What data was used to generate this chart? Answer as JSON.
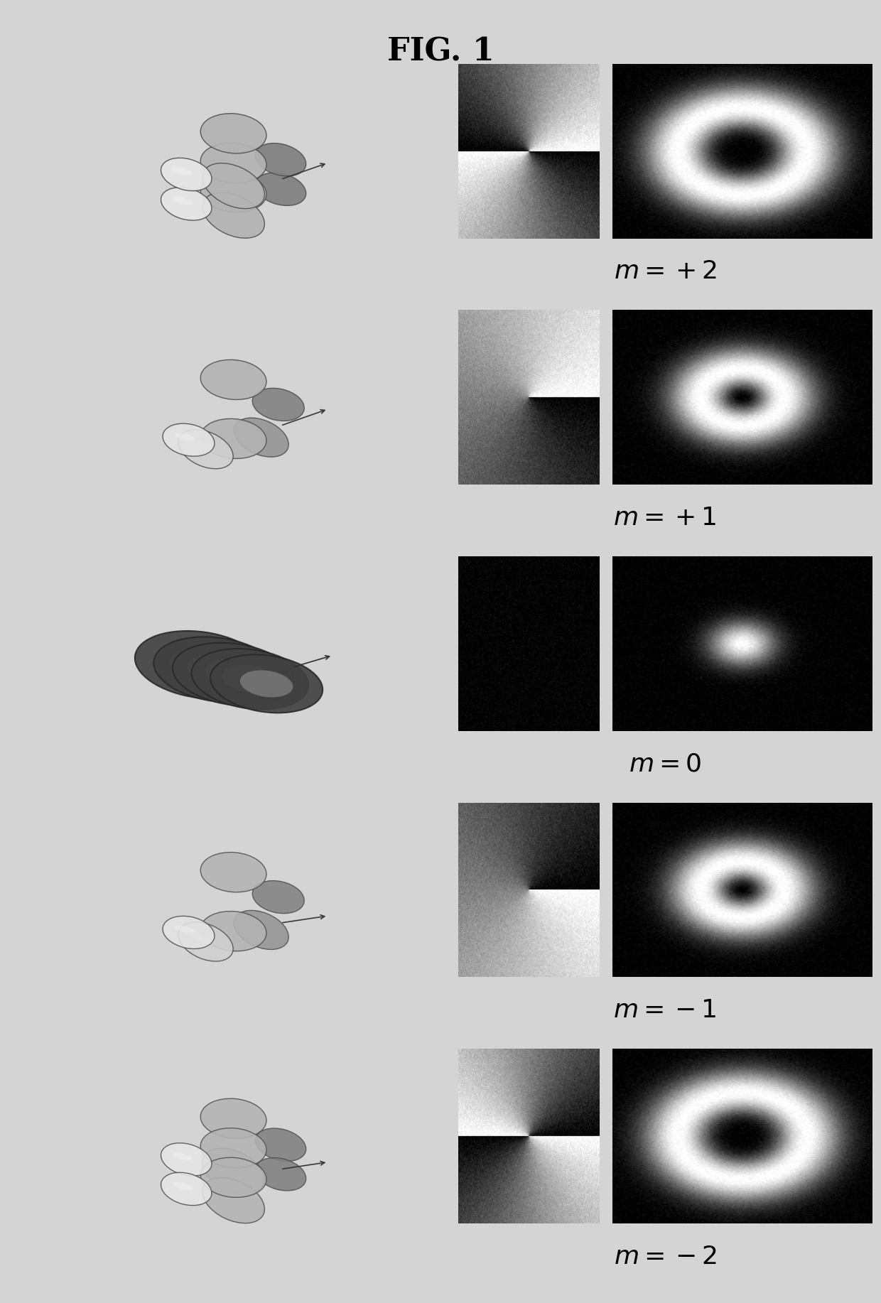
{
  "title": "FIG. 1",
  "modes": [
    2,
    1,
    0,
    -1,
    -2
  ],
  "labels": [
    "$m = +2$",
    "$m = +1$",
    "$m = 0$",
    "$m = -1$",
    "$m = -2$"
  ],
  "bg_color": "#d4d4d4",
  "fig_width": 12.4,
  "fig_height": 18.34,
  "title_fontsize": 32,
  "label_fontsize": 26,
  "phase_size": 200,
  "intensity_size": 200,
  "noise_strength": 0.04
}
